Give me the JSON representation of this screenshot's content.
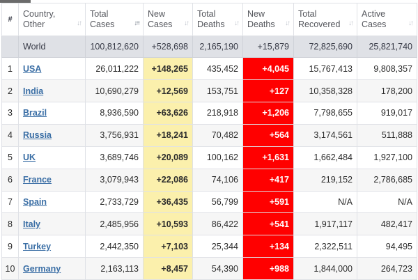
{
  "headers": [
    {
      "name": "index",
      "label": "#"
    },
    {
      "name": "country",
      "label": "Country,\nOther"
    },
    {
      "name": "total-cases",
      "label": "Total\nCases"
    },
    {
      "name": "new-cases",
      "label": "New\nCases"
    },
    {
      "name": "total-deaths",
      "label": "Total\nDeaths"
    },
    {
      "name": "new-deaths",
      "label": "New\nDeaths"
    },
    {
      "name": "total-recovered",
      "label": "Total\nRecovered"
    },
    {
      "name": "active-cases",
      "label": "Active\nCases"
    }
  ],
  "sort_icon": "sort-arrows-icon",
  "world": {
    "label": "World",
    "total_cases": "100,812,620",
    "new_cases": "+528,698",
    "total_deaths": "2,165,190",
    "new_deaths": "+15,879",
    "total_recovered": "72,825,690",
    "active_cases": "25,821,740"
  },
  "rows": [
    {
      "idx": "1",
      "country": "USA",
      "total_cases": "26,011,222",
      "new_cases": "+148,265",
      "total_deaths": "435,452",
      "new_deaths": "+4,045",
      "total_recovered": "15,767,413",
      "active_cases": "9,808,357"
    },
    {
      "idx": "2",
      "country": "India",
      "total_cases": "10,690,279",
      "new_cases": "+12,569",
      "total_deaths": "153,751",
      "new_deaths": "+127",
      "total_recovered": "10,358,328",
      "active_cases": "178,200"
    },
    {
      "idx": "3",
      "country": "Brazil",
      "total_cases": "8,936,590",
      "new_cases": "+63,626",
      "total_deaths": "218,918",
      "new_deaths": "+1,206",
      "total_recovered": "7,798,655",
      "active_cases": "919,017"
    },
    {
      "idx": "4",
      "country": "Russia",
      "total_cases": "3,756,931",
      "new_cases": "+18,241",
      "total_deaths": "70,482",
      "new_deaths": "+564",
      "total_recovered": "3,174,561",
      "active_cases": "511,888"
    },
    {
      "idx": "5",
      "country": "UK",
      "total_cases": "3,689,746",
      "new_cases": "+20,089",
      "total_deaths": "100,162",
      "new_deaths": "+1,631",
      "total_recovered": "1,662,484",
      "active_cases": "1,927,100"
    },
    {
      "idx": "6",
      "country": "France",
      "total_cases": "3,079,943",
      "new_cases": "+22,086",
      "total_deaths": "74,106",
      "new_deaths": "+417",
      "total_recovered": "219,152",
      "active_cases": "2,786,685"
    },
    {
      "idx": "7",
      "country": "Spain",
      "total_cases": "2,733,729",
      "new_cases": "+36,435",
      "total_deaths": "56,799",
      "new_deaths": "+591",
      "total_recovered": "N/A",
      "active_cases": "N/A"
    },
    {
      "idx": "8",
      "country": "Italy",
      "total_cases": "2,485,956",
      "new_cases": "+10,593",
      "total_deaths": "86,422",
      "new_deaths": "+541",
      "total_recovered": "1,917,117",
      "active_cases": "482,417"
    },
    {
      "idx": "9",
      "country": "Turkey",
      "total_cases": "2,442,350",
      "new_cases": "+7,103",
      "total_deaths": "25,344",
      "new_deaths": "+134",
      "total_recovered": "2,322,511",
      "active_cases": "94,495"
    },
    {
      "idx": "10",
      "country": "Germany",
      "total_cases": "2,163,113",
      "new_cases": "+8,457",
      "total_deaths": "54,390",
      "new_deaths": "+988",
      "total_recovered": "1,844,000",
      "active_cases": "264,723"
    }
  ],
  "colors": {
    "new_cases_bg": "#fbf0ac",
    "new_deaths_bg": "#ff0000",
    "world_row_bg": "#dfe1e6",
    "link": "#3a6ea5"
  }
}
